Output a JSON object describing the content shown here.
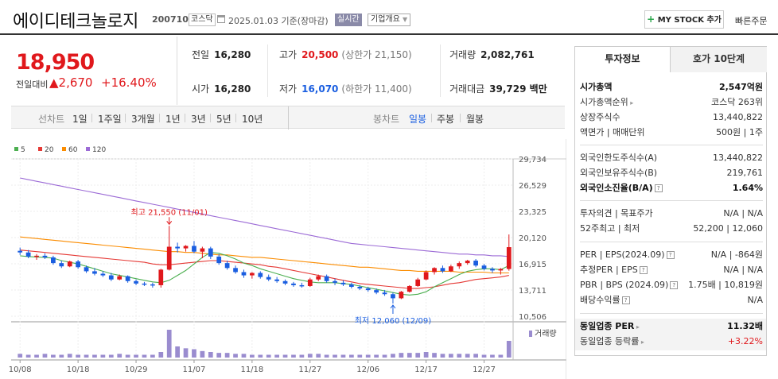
{
  "header": {
    "name": "에이디테크놀로지",
    "code": "200710",
    "market": "코스닥",
    "date": "2025.01.03 기준(장마감)",
    "live": "실시간",
    "company_info": "기업개요",
    "mystock_label": "MY STOCK 추가",
    "mystock_plus": "+",
    "quick_search": "빠른주문"
  },
  "price": {
    "current": "18,950",
    "change_label": "전일대비",
    "change": "▲2,670",
    "rate": "+16.40%"
  },
  "quote": {
    "prev_label": "전일",
    "prev": "16,280",
    "high_label": "고가",
    "high": "20,500",
    "upper_limit": "(상한가 21,150)",
    "volume_label": "거래량",
    "volume": "2,082,761",
    "open_label": "시가",
    "open": "16,280",
    "low_label": "저가",
    "low": "16,070",
    "lower_limit": "(하한가 11,400)",
    "amount_label": "거래대금",
    "amount": "39,729 백만"
  },
  "periods": {
    "line_label": "선차트",
    "items": [
      "1일",
      "1주일",
      "3개월",
      "1년",
      "3년",
      "5년",
      "10년"
    ],
    "candle_label": "봉차트",
    "candle_items": [
      "일봉",
      "주봉",
      "월봉"
    ]
  },
  "right": {
    "tab1": "투자정보",
    "tab2": "호가 10단계",
    "rows": [
      {
        "label": "시가총액",
        "value": "2,547억원"
      },
      {
        "label": "시가총액순위",
        "value": "코스닥 263위"
      },
      {
        "label": "상장주식수",
        "value": "13,440,822"
      },
      {
        "label": "액면가 | 매매단위",
        "value": "500원 | 1주"
      },
      {
        "label": "외국인한도주식수(A)",
        "value": "13,440,822"
      },
      {
        "label": "외국인보유주식수(B)",
        "value": "219,761"
      },
      {
        "label": "외국인소진율(B/A)",
        "value": "1.64%"
      },
      {
        "label": "투자의견 | 목표주가",
        "value": "N/A | N/A"
      },
      {
        "label": "52주최고 | 최저",
        "value": "52,200 | 12,060"
      },
      {
        "label": "PER | EPS(2024.09)",
        "value": "N/A | -864원"
      },
      {
        "label": "추정PER | EPS",
        "value": "N/A | N/A"
      },
      {
        "label": "PBR | BPS (2024.09)",
        "value": "1.75배 | 10,819원"
      },
      {
        "label": "배당수익률",
        "value": "N/A"
      },
      {
        "label": "동일업종 PER",
        "value": "11.32배"
      },
      {
        "label": "동일업종 등락률",
        "value": "+3.22%"
      }
    ]
  },
  "chart_data": {
    "type": "line",
    "legend": [
      "5",
      "20",
      "60",
      "120"
    ],
    "legend_colors": [
      "#4caf50",
      "#e53935",
      "#fb8c00",
      "#9c6bd6"
    ],
    "y_ticks": [
      "29,734",
      "26,529",
      "23,325",
      "20,120",
      "16,915",
      "13,711",
      "10,506"
    ],
    "x_ticks": [
      "10/08",
      "10/18",
      "10/29",
      "11/07",
      "11/18",
      "11/27",
      "12/06",
      "12/17",
      "12/27"
    ],
    "ylim": [
      10506,
      29734
    ],
    "high_annotation": "최고 21,550 (11/01)",
    "low_annotation": "최저 12,060 (12/09)",
    "volume_label": "거래량",
    "candles": [
      [
        18500,
        18900,
        18000,
        18300
      ],
      [
        18300,
        18600,
        17600,
        17800
      ],
      [
        17800,
        18100,
        17400,
        17900
      ],
      [
        17900,
        18200,
        17500,
        17700
      ],
      [
        17700,
        17900,
        16800,
        17000
      ],
      [
        17000,
        17300,
        16400,
        16600
      ],
      [
        16600,
        17300,
        16500,
        17200
      ],
      [
        17200,
        17400,
        16300,
        16500
      ],
      [
        16500,
        16700,
        15800,
        16000
      ],
      [
        16000,
        16400,
        15500,
        15700
      ],
      [
        15700,
        16000,
        15300,
        15500
      ],
      [
        15500,
        15800,
        14800,
        15000
      ],
      [
        15000,
        15600,
        14900,
        15400
      ],
      [
        15400,
        15500,
        14600,
        14800
      ],
      [
        14800,
        15000,
        14300,
        14500
      ],
      [
        14500,
        14700,
        14200,
        14400
      ],
      [
        14400,
        14600,
        14000,
        14300
      ],
      [
        14300,
        16300,
        14000,
        16200
      ],
      [
        16200,
        21550,
        16100,
        19000
      ],
      [
        19000,
        19500,
        18300,
        18800
      ],
      [
        18800,
        19200,
        18400,
        19100
      ],
      [
        19100,
        19700,
        18200,
        18400
      ],
      [
        18400,
        19000,
        17600,
        18800
      ],
      [
        18800,
        19000,
        17500,
        17800
      ],
      [
        17800,
        18100,
        16800,
        17000
      ],
      [
        17000,
        17300,
        16200,
        16400
      ],
      [
        16400,
        16700,
        15700,
        15900
      ],
      [
        15900,
        16200,
        15200,
        15500
      ],
      [
        15500,
        15900,
        15100,
        15800
      ],
      [
        15800,
        16000,
        15100,
        15300
      ],
      [
        15300,
        15600,
        14800,
        15000
      ],
      [
        15000,
        15300,
        14600,
        14800
      ],
      [
        14800,
        15000,
        14300,
        14500
      ],
      [
        14500,
        14700,
        14100,
        14300
      ],
      [
        14300,
        14600,
        14000,
        14200
      ],
      [
        14200,
        15200,
        14100,
        15000
      ],
      [
        15000,
        15600,
        14800,
        15400
      ],
      [
        15400,
        15600,
        14600,
        14800
      ],
      [
        14800,
        15100,
        14300,
        14600
      ],
      [
        14600,
        14900,
        14200,
        14400
      ],
      [
        14400,
        14600,
        13900,
        14100
      ],
      [
        14100,
        14300,
        13700,
        13900
      ],
      [
        13900,
        14100,
        13500,
        13700
      ],
      [
        13700,
        13900,
        13200,
        13400
      ],
      [
        13400,
        13700,
        13000,
        13200
      ],
      [
        13200,
        13400,
        12060,
        12700
      ],
      [
        12700,
        13600,
        12600,
        13500
      ],
      [
        13500,
        14300,
        13400,
        14200
      ],
      [
        14200,
        15200,
        14100,
        15000
      ],
      [
        15000,
        16100,
        14900,
        15900
      ],
      [
        15900,
        16500,
        15600,
        16400
      ],
      [
        16400,
        16700,
        15800,
        16000
      ],
      [
        16000,
        16800,
        15900,
        16600
      ],
      [
        16600,
        17200,
        16300,
        17000
      ],
      [
        17000,
        17400,
        16800,
        17300
      ],
      [
        17300,
        17500,
        16500,
        16700
      ],
      [
        16700,
        16900,
        16100,
        16300
      ],
      [
        16300,
        16500,
        15800,
        16100
      ],
      [
        16100,
        16400,
        15600,
        16280
      ],
      [
        16280,
        20500,
        16070,
        18950
      ]
    ],
    "volumes": [
      4,
      3,
      3,
      4,
      3,
      3,
      4,
      3,
      3,
      3,
      3,
      3,
      4,
      3,
      3,
      3,
      3,
      6,
      30,
      12,
      10,
      9,
      7,
      6,
      5,
      5,
      4,
      4,
      3,
      3,
      3,
      3,
      3,
      3,
      3,
      4,
      4,
      3,
      3,
      3,
      3,
      3,
      3,
      3,
      3,
      4,
      5,
      5,
      5,
      6,
      5,
      4,
      4,
      4,
      4,
      4,
      3,
      3,
      3,
      18
    ],
    "ma5": [
      17900,
      17800,
      17750,
      17700,
      17600,
      17300,
      17100,
      16900,
      16600,
      16300,
      16000,
      15700,
      15500,
      15300,
      15100,
      14900,
      14700,
      14600,
      14900,
      15500,
      16100,
      16900,
      17700,
      18300,
      18200,
      17900,
      17500,
      17000,
      16700,
      16300,
      16000,
      15700,
      15400,
      15100,
      14900,
      14700,
      14600,
      14600,
      14600,
      14500,
      14400,
      14200,
      14000,
      13800,
      13600,
      13400,
      13200,
      13100,
      13200,
      13500,
      14100,
      14600,
      15100,
      15600,
      16000,
      16200,
      16300,
      16300,
      16200,
      16700
    ],
    "ma20": [
      18600,
      18500,
      18400,
      18300,
      18200,
      18100,
      18000,
      17900,
      17800,
      17700,
      17600,
      17500,
      17400,
      17300,
      17200,
      17100,
      16900,
      16800,
      16800,
      16900,
      17000,
      17100,
      17200,
      17300,
      17300,
      17200,
      17100,
      17000,
      16900,
      16800,
      16600,
      16500,
      16300,
      16100,
      15900,
      15700,
      15500,
      15300,
      15100,
      14900,
      14700,
      14500,
      14400,
      14300,
      14200,
      14100,
      14000,
      13900,
      13900,
      14000,
      14100,
      14300,
      14500,
      14600,
      14800,
      15000,
      15100,
      15200,
      15300,
      15500
    ],
    "ma60": [
      20200,
      20100,
      20000,
      19900,
      19800,
      19700,
      19600,
      19500,
      19400,
      19300,
      19200,
      19100,
      19000,
      18900,
      18800,
      18700,
      18600,
      18500,
      18400,
      18400,
      18300,
      18300,
      18200,
      18100,
      18000,
      18000,
      17900,
      17800,
      17700,
      17700,
      17600,
      17500,
      17400,
      17300,
      17200,
      17100,
      17000,
      16900,
      16800,
      16700,
      16600,
      16500,
      16500,
      16400,
      16300,
      16200,
      16100,
      16100,
      16000,
      16000,
      16000,
      16000,
      16000,
      15900,
      15900,
      15900,
      15900,
      15800,
      15800,
      15800
    ],
    "ma120": [
      27400,
      27200,
      27000,
      26800,
      26600,
      26400,
      26200,
      26000,
      25800,
      25600,
      25400,
      25200,
      25000,
      24800,
      24600,
      24400,
      24200,
      24000,
      23800,
      23600,
      23400,
      23200,
      23000,
      22800,
      22600,
      22400,
      22200,
      22000,
      21800,
      21600,
      21400,
      21200,
      21000,
      20800,
      20600,
      20400,
      20200,
      20000,
      19800,
      19600,
      19400,
      19300,
      19200,
      19100,
      19000,
      18900,
      18800,
      18700,
      18600,
      18500,
      18400,
      18300,
      18200,
      18100,
      18100,
      18000,
      18000,
      17900,
      17900,
      17800
    ]
  }
}
